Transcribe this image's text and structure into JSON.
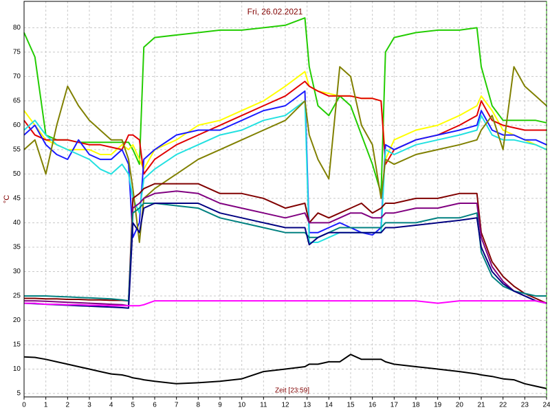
{
  "chart_data": {
    "type": "line",
    "title": "Fri, 26.02.2021",
    "ylabel": "°C",
    "xlabel": "Zeit [23:59]",
    "x": [
      0,
      0.5,
      1,
      1.5,
      2,
      2.5,
      3,
      3.5,
      4,
      4.5,
      4.8,
      5,
      5.3,
      5.5,
      6,
      7,
      8,
      9,
      10,
      11,
      12,
      12.9,
      13.1,
      13.5,
      14,
      14.5,
      15,
      15.5,
      16,
      16.4,
      16.6,
      17,
      18,
      19,
      20,
      20.8,
      21,
      21.5,
      22,
      22.5,
      23,
      23.5,
      24
    ],
    "xlim": [
      0,
      24
    ],
    "xticks": [
      0,
      1,
      2,
      3,
      4,
      5,
      6,
      7,
      8,
      9,
      10,
      11,
      12,
      13,
      14,
      15,
      16,
      17,
      18,
      19,
      20,
      21,
      22,
      23,
      24
    ],
    "ylim": [
      4.3,
      85.4
    ],
    "yticks": [
      5,
      10,
      15,
      20,
      25,
      30,
      35,
      40,
      45,
      50,
      55,
      60,
      65,
      70,
      75,
      80
    ],
    "grid": true,
    "series": [
      {
        "color": "#22cc00",
        "values": [
          79,
          74,
          58,
          57,
          57,
          56.5,
          56.5,
          56.5,
          56.5,
          56.5,
          56.5,
          55,
          52,
          76,
          78,
          78.5,
          79,
          79.5,
          79.5,
          80,
          80.5,
          82,
          72,
          64,
          62,
          66,
          64,
          58,
          52,
          46,
          75,
          78,
          79,
          79.5,
          79.5,
          80,
          72,
          64,
          61,
          61,
          61,
          61,
          60.5
        ]
      },
      {
        "color": "#ffff00",
        "values": [
          63,
          60,
          57,
          56,
          55,
          55,
          55,
          54,
          54,
          56,
          55,
          56,
          53,
          51,
          55,
          57,
          60,
          61,
          63,
          65,
          68,
          71,
          68,
          67,
          66.5,
          66,
          66,
          65.5,
          65.5,
          65,
          53,
          57,
          59,
          60,
          62,
          64,
          66,
          63,
          59,
          58,
          57,
          56,
          55
        ]
      },
      {
        "color": "#e00000",
        "values": [
          61,
          58,
          57,
          57,
          57,
          56.5,
          56,
          56,
          55.5,
          55,
          58,
          58,
          57,
          50,
          53,
          56,
          58,
          60,
          62,
          64,
          66,
          69,
          68,
          67,
          66,
          66,
          66,
          65.5,
          65.5,
          65,
          52,
          55,
          57,
          58,
          60,
          62,
          65,
          61,
          60,
          59.5,
          59,
          59,
          59
        ]
      },
      {
        "color": "#1a1aff",
        "values": [
          58,
          60,
          56,
          54,
          53,
          57,
          54,
          53,
          53,
          55,
          52,
          37,
          40,
          53,
          55,
          58,
          59,
          59,
          61,
          63,
          64,
          67,
          38,
          38,
          39,
          40,
          39,
          38,
          37.5,
          39,
          56,
          55,
          57,
          58,
          59,
          60,
          63,
          59,
          58,
          58,
          57,
          57,
          56
        ]
      },
      {
        "color": "#22e0e0",
        "values": [
          59,
          61,
          58,
          56,
          55,
          54,
          53,
          51,
          50,
          52,
          50,
          45,
          42,
          49,
          51,
          54,
          56,
          58,
          59,
          61,
          62,
          65,
          36,
          36,
          37,
          38,
          38,
          38,
          38,
          38,
          55,
          54,
          56,
          57,
          58,
          59,
          62,
          58,
          57,
          57,
          56.5,
          56,
          55
        ]
      },
      {
        "color": "#808000",
        "values": [
          55,
          57,
          50,
          60,
          68,
          64,
          61,
          59,
          57,
          57,
          53,
          47,
          36,
          45,
          47,
          50,
          53,
          55,
          57,
          59,
          61,
          65,
          58,
          53,
          49,
          72,
          70,
          60,
          56,
          45,
          53,
          52,
          54,
          55,
          56,
          57,
          59,
          62,
          55,
          72,
          68,
          66,
          64
        ]
      },
      {
        "color": "#800000",
        "values": [
          24.5,
          24.5,
          24.4,
          24.4,
          24.3,
          24.3,
          24.2,
          24.2,
          24.1,
          24.1,
          24,
          45,
          46,
          47,
          48,
          48,
          48,
          46,
          46,
          45,
          43,
          44,
          40,
          42,
          41,
          42,
          43,
          44,
          42,
          43,
          44,
          44,
          45,
          45,
          46,
          46,
          38,
          32,
          29,
          27,
          25.5,
          24.5,
          23.5
        ]
      },
      {
        "color": "#800080",
        "values": [
          24,
          24,
          23.9,
          23.8,
          23.7,
          23.6,
          23.5,
          23.4,
          23.3,
          23.2,
          23,
          43,
          44,
          45,
          46,
          46.5,
          46,
          44,
          43,
          42,
          41,
          42,
          40,
          40,
          40,
          41,
          42,
          42,
          41,
          41,
          42,
          42,
          43,
          43,
          44,
          44,
          37,
          31,
          28,
          26,
          25,
          24,
          23.5
        ]
      },
      {
        "color": "#008080",
        "values": [
          25,
          25,
          25,
          24.9,
          24.8,
          24.7,
          24.6,
          24.5,
          24.4,
          24.2,
          24,
          42,
          43,
          44,
          44,
          43.5,
          43,
          41,
          40,
          39,
          38,
          38,
          37,
          37,
          38,
          39,
          39,
          39,
          39,
          39,
          40,
          40,
          40,
          41,
          41,
          42,
          34,
          29,
          27,
          26,
          25.5,
          25,
          25
        ]
      },
      {
        "color": "#000080",
        "values": [
          23.5,
          23.4,
          23.3,
          23.2,
          23.1,
          23,
          22.9,
          22.8,
          22.7,
          22.6,
          22.5,
          40,
          38,
          43,
          44,
          44,
          44,
          42,
          41,
          40,
          39,
          39,
          35.5,
          37,
          38,
          38,
          38,
          38,
          38,
          38,
          39,
          39,
          39.5,
          40,
          40.5,
          41,
          35,
          30,
          27.5,
          26,
          25,
          24,
          23.5
        ]
      },
      {
        "color": "#ff00ff",
        "values": [
          23.5,
          23.5,
          23.3,
          23.3,
          23.2,
          23.2,
          23.1,
          23.1,
          23,
          23,
          23,
          23,
          23,
          23.2,
          24,
          24,
          24,
          24,
          24,
          24,
          24,
          24,
          24,
          24,
          24,
          24,
          24,
          24,
          24,
          24,
          24,
          24,
          24,
          23.5,
          24,
          24,
          24,
          24,
          24,
          24,
          24,
          24,
          23.5
        ]
      },
      {
        "color": "#000000",
        "values": [
          12.5,
          12.4,
          12,
          11.5,
          11,
          10.5,
          10,
          9.5,
          9,
          8.8,
          8.5,
          8.2,
          8,
          7.8,
          7.5,
          7,
          7.2,
          7.5,
          8,
          9.5,
          10,
          10.5,
          11,
          11,
          11.5,
          11.5,
          13,
          12,
          12,
          12,
          11.5,
          11,
          10.5,
          10,
          9.5,
          9,
          8.8,
          8.5,
          8,
          7.8,
          7,
          6.5,
          6
        ]
      }
    ]
  }
}
